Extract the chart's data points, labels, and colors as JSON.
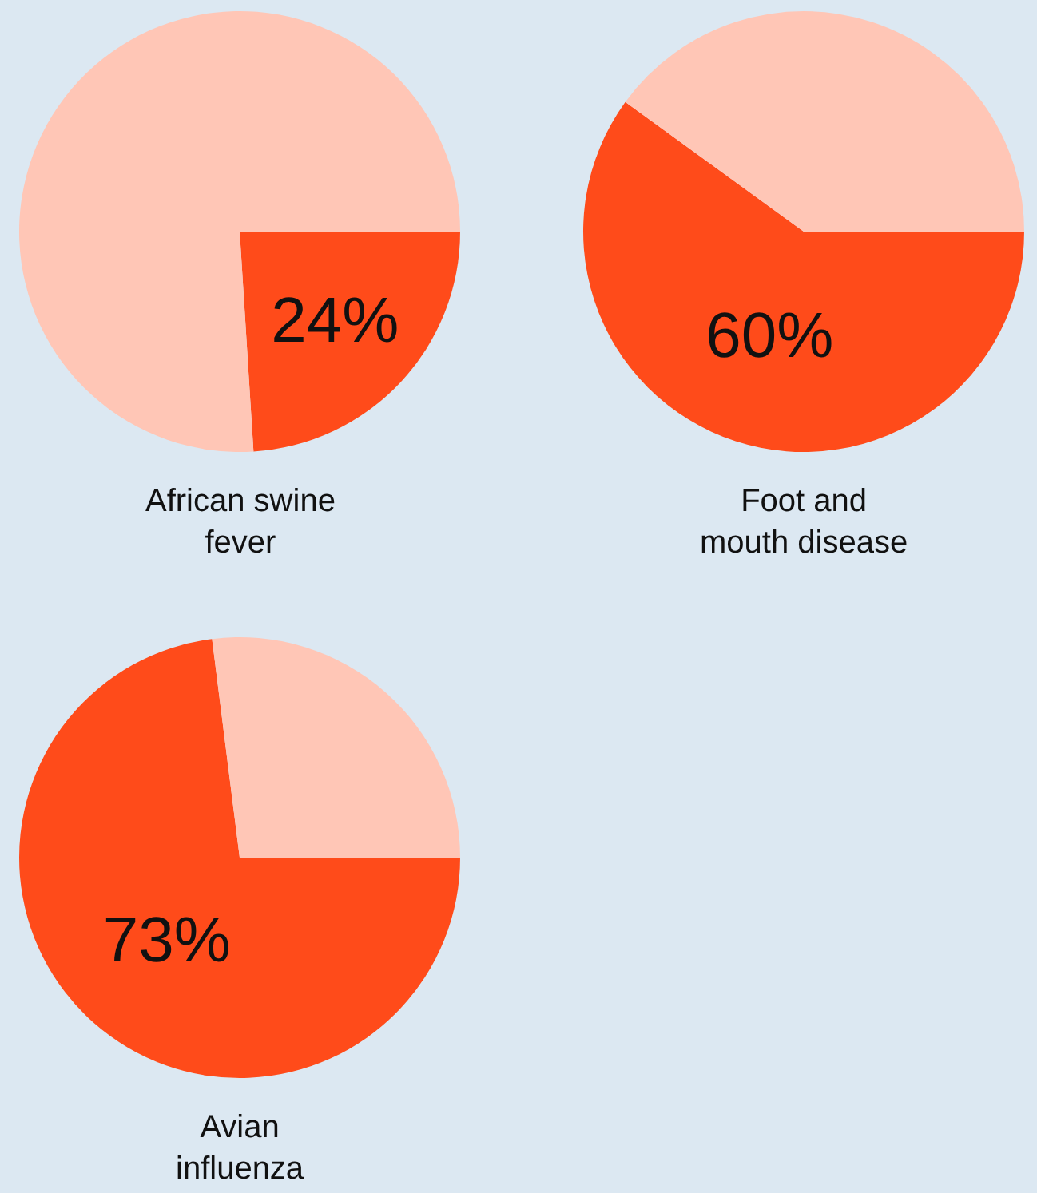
{
  "chart_data": [
    {
      "type": "pie",
      "title": "African swine\nfever",
      "categories": [
        null,
        null
      ],
      "values": [
        24,
        76
      ],
      "colors": [
        "#ff4b1a",
        "#ffc6b6"
      ],
      "value_labels": [
        "24%",
        null
      ]
    },
    {
      "type": "pie",
      "title": "Foot and\nmouth disease",
      "categories": [
        null,
        null
      ],
      "values": [
        60,
        40
      ],
      "colors": [
        "#ff4b1a",
        "#ffc6b6"
      ],
      "value_labels": [
        "60%",
        null
      ]
    },
    {
      "type": "pie",
      "title": "Avian\ninfluenza",
      "categories": [
        null,
        null
      ],
      "values": [
        73,
        27
      ],
      "colors": [
        "#ff4b1a",
        "#ffc6b6"
      ],
      "value_labels": [
        "73%",
        null
      ]
    }
  ]
}
